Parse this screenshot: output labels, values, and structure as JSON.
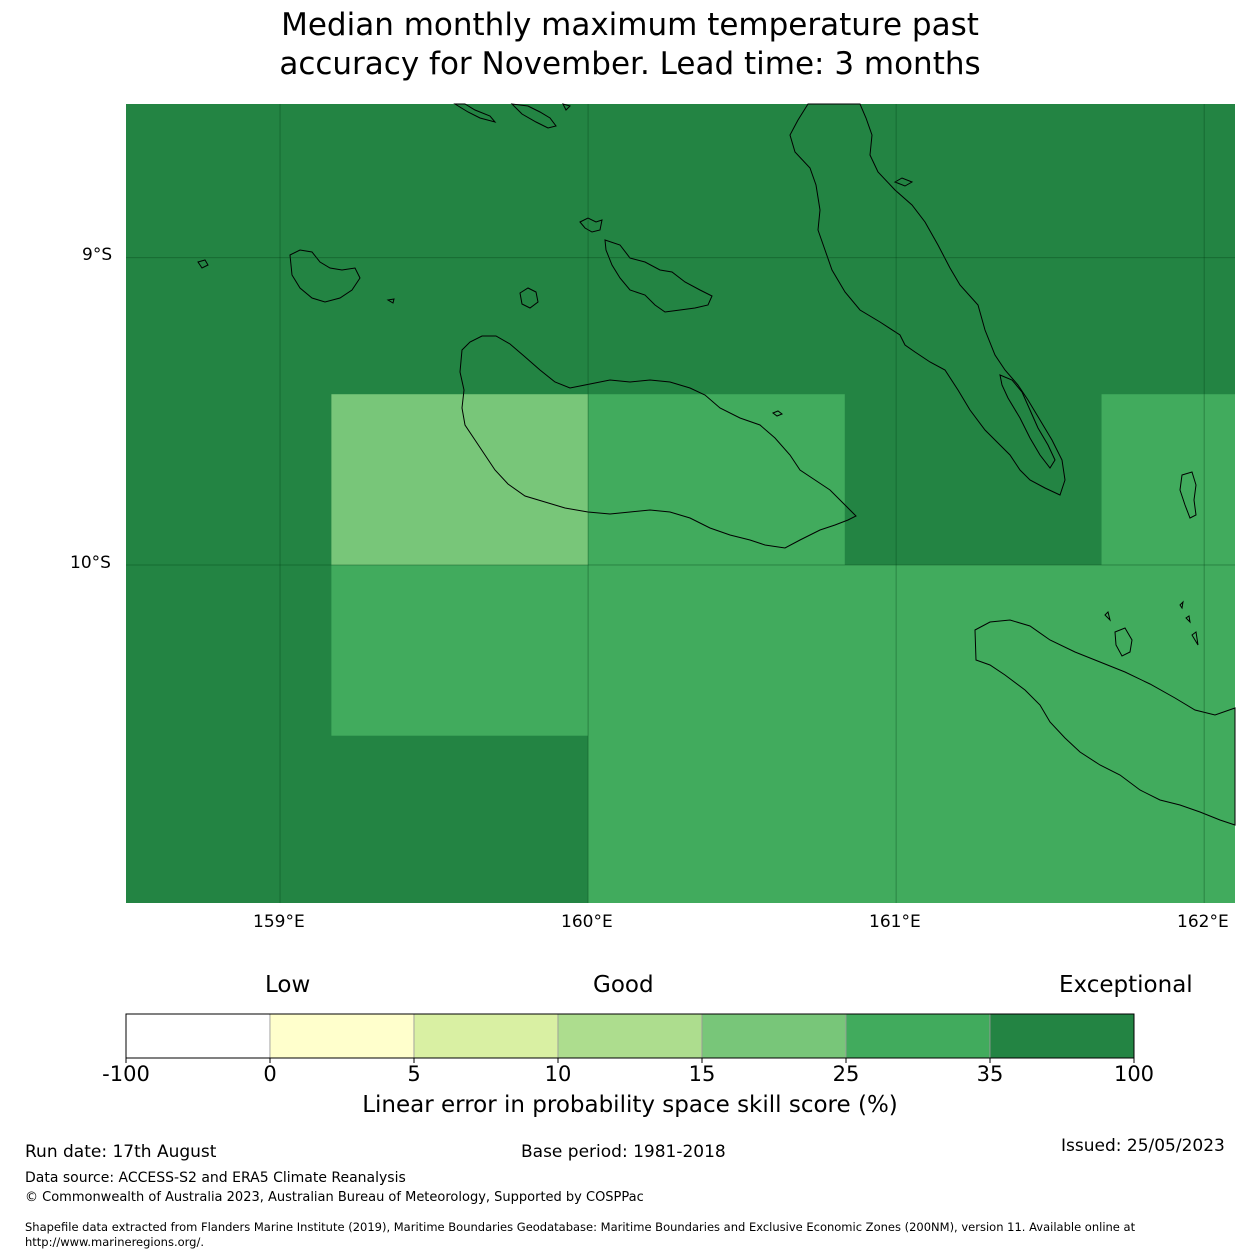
{
  "title_lines": [
    "Median monthly maximum temperature past",
    "accuracy for November. Lead time: 3 months"
  ],
  "map": {
    "lon_range": [
      158.5,
      162.1
    ],
    "lat_range": [
      -11.1,
      -8.5
    ],
    "lat_ticks": [
      {
        "value": -9,
        "label": "9°S"
      },
      {
        "value": -10,
        "label": "10°S"
      }
    ],
    "lon_ticks": [
      {
        "value": 159,
        "label": "159°E"
      },
      {
        "value": 160,
        "label": "160°E"
      },
      {
        "value": 161,
        "label": "161°E"
      },
      {
        "value": 162,
        "label": "162°E"
      }
    ],
    "background_color": "#238443",
    "cells": [
      {
        "lon": [
          159.1667,
          160.0
        ],
        "lat": [
          -10.0,
          -9.4444
        ],
        "color": "#78c679",
        "class": "15-25"
      },
      {
        "lon": [
          160.0,
          160.8333
        ],
        "lat": [
          -10.0,
          -9.4444
        ],
        "color": "#41ab5d",
        "class": "25-35"
      },
      {
        "lon": [
          161.6667,
          162.1
        ],
        "lat": [
          -10.0,
          -9.4444
        ],
        "color": "#41ab5d",
        "class": "25-35"
      },
      {
        "lon": [
          159.1667,
          160.0
        ],
        "lat": [
          -10.5556,
          -10.0
        ],
        "color": "#41ab5d",
        "class": "25-35"
      },
      {
        "lon": [
          160.0,
          162.1
        ],
        "lat": [
          -11.1,
          -10.0
        ],
        "color": "#41ab5d",
        "class": "25-35"
      }
    ]
  },
  "colorbar": {
    "categories": [
      {
        "label": "Low"
      },
      {
        "label": "Good"
      },
      {
        "label": "Exceptional"
      }
    ],
    "bins": [
      {
        "color": "#ffffff"
      },
      {
        "color": "#ffffcc"
      },
      {
        "color": "#d9f0a3"
      },
      {
        "color": "#addd8e"
      },
      {
        "color": "#78c679"
      },
      {
        "color": "#41ab5d"
      },
      {
        "color": "#238443"
      }
    ],
    "ticks": [
      "-100",
      "0",
      "5",
      "10",
      "15",
      "25",
      "35",
      "100"
    ],
    "label": "Linear error in probability space skill score (%)"
  },
  "footer": {
    "run_date": "Run date: 17th August",
    "base_period": "Base period: 1981-2018",
    "issued": "Issued: 25/05/2023",
    "data_source": "Data source: ACCESS-S2 and ERA5 Climate Reanalysis",
    "copyright": "© Commonwealth of Australia 2023, Australian Bureau of Meteorology, Supported by COSPPac",
    "shapefile_line1": "Shapefile data extracted from Flanders Marine Institute (2019), Maritime Boundaries Geodatabase: Maritime Boundaries and Exclusive Economic Zones (200NM), version 11. Available online at",
    "shapefile_line2": "http://www.marineregions.org/."
  }
}
